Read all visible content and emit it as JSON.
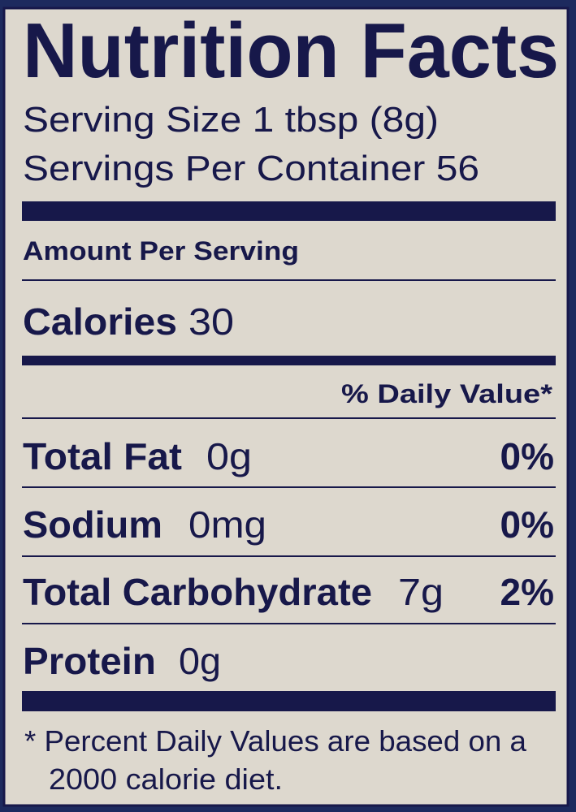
{
  "colors": {
    "ink": "#17184a",
    "paper": "#ddd8ce",
    "frame": "#1d2a5e"
  },
  "label": {
    "title": "Nutrition Facts",
    "serving_size": "Serving Size 1 tbsp (8g)",
    "servings_per_container": "Servings Per Container 56",
    "amount_per_serving": "Amount Per Serving",
    "calories_label": "Calories",
    "calories_value": "30",
    "daily_value_header": "% Daily Value*",
    "nutrients": [
      {
        "name": "Total Fat",
        "amount": "0g",
        "dv": "0%"
      },
      {
        "name": "Sodium",
        "amount": "0mg",
        "dv": "0%"
      },
      {
        "name": "Total Carbohydrate",
        "amount": "7g",
        "dv": "2%"
      },
      {
        "name": "Protein",
        "amount": "0g",
        "dv": ""
      }
    ],
    "footnote_line1": "* Percent Daily Values are based on a",
    "footnote_line2": "2000 calorie diet."
  }
}
